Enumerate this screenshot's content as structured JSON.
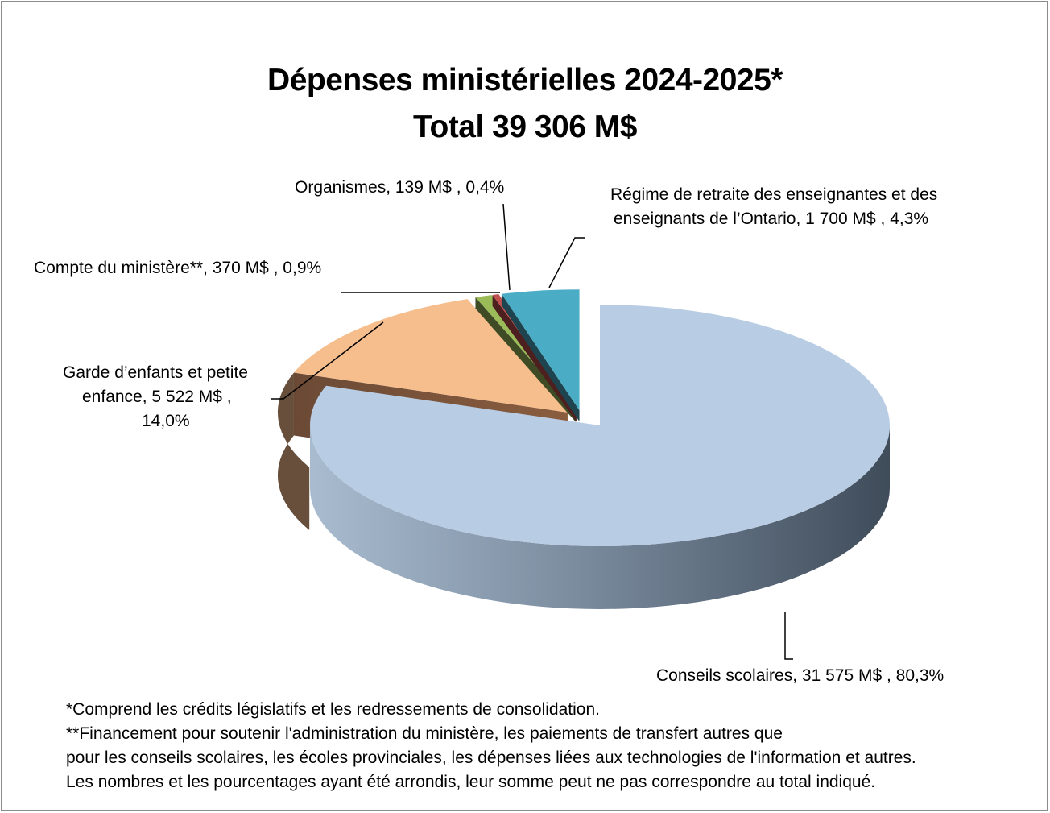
{
  "chart_data": {
    "type": "pie",
    "title": "Dépenses ministérielles 2024-2025*",
    "subtitle": "Total 39 306 M$",
    "slices": [
      {
        "label": "Conseils scolaires",
        "value": 31575,
        "value_text": "31 575 M$",
        "percent_text": "80,3%",
        "percent": 80.3,
        "color": "#b8cce4"
      },
      {
        "label": "Garde d’enfants et petite enfance",
        "value": 5522,
        "value_text": "5 522 M$",
        "percent_text": "14,0%",
        "percent": 14.0,
        "color": "#f6bd8d"
      },
      {
        "label": "Compte du ministère**",
        "value": 370,
        "value_text": "370 M$",
        "percent_text": "0,9%",
        "percent": 0.9,
        "color": "#9bbb59"
      },
      {
        "label": "Organismes",
        "value": 139,
        "value_text": "139 M$",
        "percent_text": "0,4%",
        "percent": 0.4,
        "color": "#c0504d"
      },
      {
        "label": "Régime de retraite des enseignantes et des enseignants de l’Ontario",
        "value": 1700,
        "value_text": "1 700 M$",
        "percent_text": "4,3%",
        "percent": 4.3,
        "color": "#4bacc6"
      }
    ],
    "data_labels": {
      "conseils": "Conseils scolaires,  31 575 M$ , 80,3%",
      "garde_line1": "Garde d’enfants et petite",
      "garde_line2": "enfance,  5 522 M$ ,",
      "garde_line3": "14,0%",
      "compte": "Compte du ministère**,  370 M$ , 0,9%",
      "organismes": "Organismes,  139 M$ , 0,4%",
      "regime_line1": "Régime de retraite des enseignantes et des",
      "regime_line2": "enseignants de l’Ontario,  1 700 M$ , 4,3%"
    }
  },
  "notes": [
    "*Comprend les crédits législatifs et les redressements de consolidation.",
    "**Financement pour soutenir l'administration du ministère, les paiements de transfert autres que",
    "pour les conseils scolaires, les écoles provinciales, les dépenses liées aux technologies de l'information et autres.",
    "Les nombres et les pourcentages ayant été arrondis, leur somme peut ne pas correspondre au total indiqué."
  ]
}
